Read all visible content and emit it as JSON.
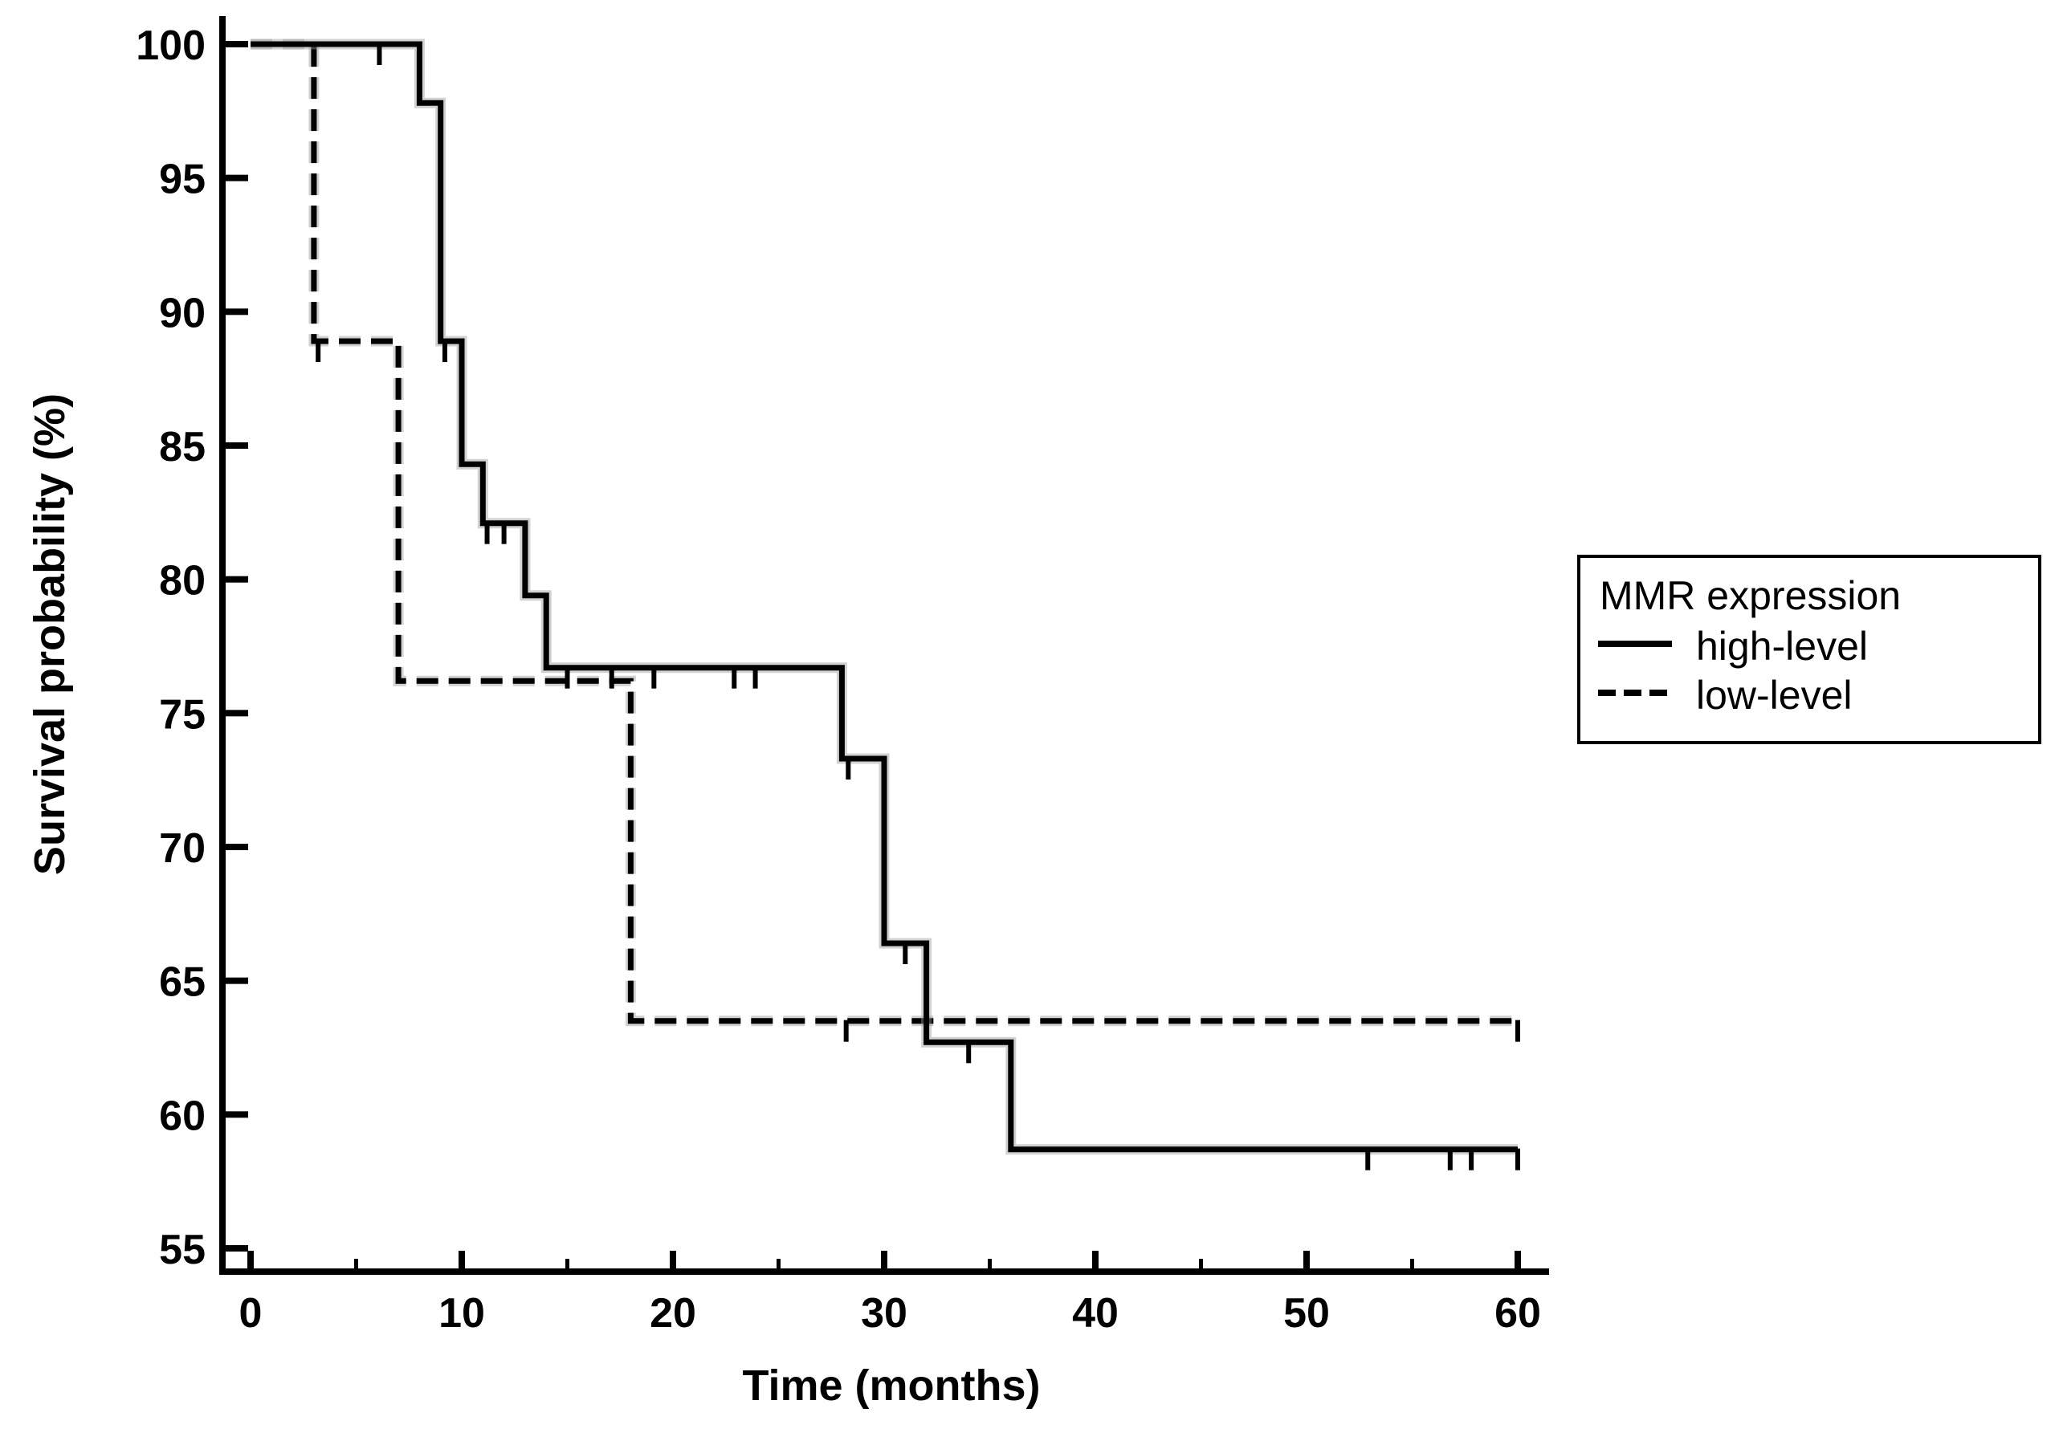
{
  "figure": {
    "background_color": "#ffffff",
    "line_color": "#000000",
    "halo_color": "#9a9a9a"
  },
  "chart_data": {
    "type": "line",
    "subtype": "kaplan-meier-step",
    "title": "",
    "xlabel": "Time (months)",
    "ylabel": "Survival probability (%)",
    "xlim": [
      0,
      61.5
    ],
    "ylim": [
      54,
      101.5
    ],
    "x_major_ticks": [
      0,
      10,
      20,
      30,
      40,
      50,
      60
    ],
    "x_minor_ticks": [
      5,
      15,
      25,
      35,
      45,
      55
    ],
    "y_ticks": [
      100,
      95,
      90,
      85,
      80,
      75,
      70,
      65,
      60,
      55
    ],
    "grid": false,
    "legend": {
      "title": "MMR expression",
      "position": "right",
      "entries": [
        {
          "label": "high-level",
          "line_style": "solid"
        },
        {
          "label": "low-level",
          "line_style": "dashed"
        }
      ]
    },
    "series": [
      {
        "name": "high-level",
        "line_style": "solid",
        "steps": [
          [
            0,
            100
          ],
          [
            8,
            100
          ],
          [
            8,
            97.8
          ],
          [
            9,
            97.8
          ],
          [
            9,
            88.9
          ],
          [
            10,
            88.9
          ],
          [
            10,
            84.3
          ],
          [
            11,
            84.3
          ],
          [
            11,
            82.1
          ],
          [
            13,
            82.1
          ],
          [
            13,
            79.4
          ],
          [
            14,
            79.4
          ],
          [
            14,
            76.7
          ],
          [
            28,
            76.7
          ],
          [
            28,
            73.3
          ],
          [
            30,
            73.3
          ],
          [
            30,
            66.4
          ],
          [
            32,
            66.4
          ],
          [
            32,
            62.7
          ],
          [
            36,
            62.7
          ],
          [
            36,
            58.7
          ],
          [
            60,
            58.7
          ]
        ],
        "censor_marks": [
          [
            6.1,
            100
          ],
          [
            9.2,
            88.9
          ],
          [
            11.2,
            82.1
          ],
          [
            12.0,
            82.1
          ],
          [
            15.0,
            76.7
          ],
          [
            17.1,
            76.7
          ],
          [
            19.1,
            76.7
          ],
          [
            22.9,
            76.7
          ],
          [
            23.9,
            76.7
          ],
          [
            28.3,
            73.3
          ],
          [
            31.0,
            66.4
          ],
          [
            34.0,
            62.7
          ],
          [
            52.9,
            58.7
          ],
          [
            56.8,
            58.7
          ],
          [
            57.8,
            58.7
          ],
          [
            60,
            58.7
          ]
        ]
      },
      {
        "name": "low-level",
        "line_style": "dashed",
        "steps": [
          [
            0,
            100
          ],
          [
            3,
            100
          ],
          [
            3,
            88.9
          ],
          [
            7,
            88.9
          ],
          [
            7,
            76.2
          ],
          [
            18,
            76.2
          ],
          [
            18,
            63.5
          ],
          [
            60,
            63.5
          ]
        ],
        "censor_marks": [
          [
            3.2,
            88.9
          ],
          [
            28.2,
            63.5
          ],
          [
            60,
            63.5
          ]
        ]
      }
    ]
  }
}
